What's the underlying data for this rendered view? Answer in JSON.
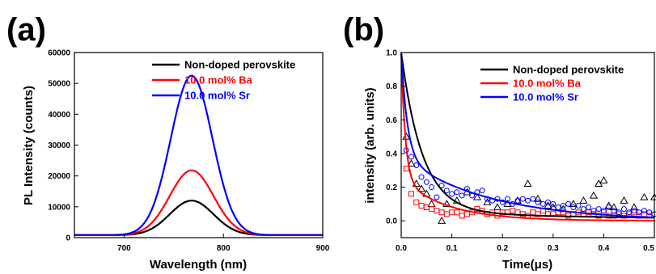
{
  "chart_data": [
    {
      "panel_label": "(a)",
      "type": "line",
      "xlabel": "Wavelength (nm)",
      "ylabel": "PL Intensity (counts)",
      "xlim": [
        650,
        900
      ],
      "ylim": [
        0,
        60000
      ],
      "xticks": [
        "700",
        "800",
        "900"
      ],
      "yticks": [
        "0",
        "10000",
        "20000",
        "30000",
        "40000",
        "50000",
        "60000"
      ],
      "legend_position": "top-right",
      "series": [
        {
          "name": "Non-doped perovskite",
          "color": "#000000",
          "peak_x": 768,
          "peak_y": 12000,
          "baseline": 800,
          "width": 22
        },
        {
          "name": "10.0 mol% Ba",
          "color": "#ff0000",
          "peak_x": 768,
          "peak_y": 21800,
          "baseline": 800,
          "width": 22
        },
        {
          "name": "10.0 mol% Sr",
          "color": "#0000ff",
          "peak_x": 768,
          "peak_y": 52500,
          "baseline": 800,
          "width": 21
        }
      ]
    },
    {
      "panel_label": "(b)",
      "type": "scatter",
      "xlabel": "Time(μs)",
      "ylabel": "intensity (arb. units)",
      "xlim": [
        0,
        0.5
      ],
      "ylim": [
        -0.1,
        1.0
      ],
      "xticks": [
        "0.0",
        "0.1",
        "0.2",
        "0.3",
        "0.4",
        "0.5"
      ],
      "yticks": [
        "0.0",
        "0.2",
        "0.4",
        "0.6",
        "0.8",
        "1.0"
      ],
      "legend_position": "top-right",
      "series": [
        {
          "name": "Non-doped perovskite",
          "color": "#000000",
          "marker": "triangle",
          "fit": {
            "a1": 0.95,
            "t1": 0.042,
            "a2": 0.05,
            "t2": 0.5
          },
          "points": [
            [
              0.01,
              0.5
            ],
            [
              0.02,
              0.34
            ],
            [
              0.03,
              0.22
            ],
            [
              0.04,
              0.19
            ],
            [
              0.05,
              0.16
            ],
            [
              0.06,
              0.1
            ],
            [
              0.08,
              0.0
            ],
            [
              0.09,
              0.1
            ],
            [
              0.11,
              0.12
            ],
            [
              0.13,
              0.17
            ],
            [
              0.15,
              0.14
            ],
            [
              0.17,
              0.11
            ],
            [
              0.19,
              0.08
            ],
            [
              0.21,
              0.1
            ],
            [
              0.23,
              0.12
            ],
            [
              0.25,
              0.22
            ],
            [
              0.27,
              0.13
            ],
            [
              0.29,
              0.09
            ],
            [
              0.3,
              0.08
            ],
            [
              0.32,
              0.07
            ],
            [
              0.34,
              0.1
            ],
            [
              0.36,
              0.12
            ],
            [
              0.38,
              0.15
            ],
            [
              0.39,
              0.22
            ],
            [
              0.4,
              0.24
            ],
            [
              0.41,
              0.09
            ],
            [
              0.42,
              0.08
            ],
            [
              0.44,
              0.12
            ],
            [
              0.46,
              0.08
            ],
            [
              0.48,
              0.14
            ],
            [
              0.5,
              0.14
            ]
          ]
        },
        {
          "name": "10.0 mol% Ba",
          "color": "#ff0000",
          "marker": "square",
          "fit": {
            "a1": 0.75,
            "t1": 0.008,
            "a2": 0.25,
            "t2": 0.09
          },
          "points": [
            [
              0.01,
              0.31
            ],
            [
              0.02,
              0.16
            ],
            [
              0.03,
              0.11
            ],
            [
              0.04,
              0.09
            ],
            [
              0.05,
              0.08
            ],
            [
              0.06,
              0.07
            ],
            [
              0.07,
              0.06
            ],
            [
              0.08,
              0.05
            ],
            [
              0.09,
              0.04
            ],
            [
              0.1,
              0.05
            ],
            [
              0.11,
              0.05
            ],
            [
              0.12,
              0.03
            ],
            [
              0.13,
              0.04
            ],
            [
              0.14,
              0.05
            ],
            [
              0.15,
              0.07
            ],
            [
              0.16,
              0.06
            ],
            [
              0.17,
              0.04
            ],
            [
              0.18,
              0.05
            ],
            [
              0.19,
              0.03
            ],
            [
              0.2,
              0.05
            ],
            [
              0.21,
              0.05
            ],
            [
              0.22,
              0.06
            ],
            [
              0.23,
              0.05
            ],
            [
              0.24,
              0.04
            ],
            [
              0.25,
              0.03
            ],
            [
              0.26,
              0.05
            ],
            [
              0.27,
              0.04
            ],
            [
              0.28,
              0.06
            ],
            [
              0.29,
              0.04
            ],
            [
              0.3,
              0.04
            ],
            [
              0.31,
              0.05
            ],
            [
              0.32,
              0.05
            ],
            [
              0.33,
              0.03
            ],
            [
              0.34,
              0.04
            ],
            [
              0.35,
              0.05
            ],
            [
              0.36,
              0.04
            ],
            [
              0.37,
              0.05
            ],
            [
              0.38,
              0.04
            ],
            [
              0.39,
              0.03
            ],
            [
              0.4,
              0.05
            ],
            [
              0.41,
              0.03
            ],
            [
              0.42,
              0.03
            ],
            [
              0.43,
              0.04
            ],
            [
              0.44,
              0.03
            ],
            [
              0.45,
              0.04
            ],
            [
              0.46,
              0.05
            ],
            [
              0.47,
              0.03
            ],
            [
              0.48,
              0.04
            ],
            [
              0.49,
              0.03
            ]
          ]
        },
        {
          "name": "10.0 mol% Sr",
          "color": "#0000ff",
          "marker": "circle",
          "fit": {
            "a1": 0.62,
            "t1": 0.012,
            "a2": 0.38,
            "t2": 0.17
          },
          "points": [
            [
              0.01,
              0.42
            ],
            [
              0.02,
              0.38
            ],
            [
              0.03,
              0.33
            ],
            [
              0.04,
              0.26
            ],
            [
              0.05,
              0.23
            ],
            [
              0.06,
              0.2
            ],
            [
              0.07,
              0.14
            ],
            [
              0.08,
              0.21
            ],
            [
              0.09,
              0.18
            ],
            [
              0.1,
              0.16
            ],
            [
              0.11,
              0.17
            ],
            [
              0.12,
              0.15
            ],
            [
              0.13,
              0.19
            ],
            [
              0.14,
              0.15
            ],
            [
              0.15,
              0.17
            ],
            [
              0.16,
              0.18
            ],
            [
              0.17,
              0.13
            ],
            [
              0.18,
              0.12
            ],
            [
              0.19,
              0.13
            ],
            [
              0.2,
              0.11
            ],
            [
              0.21,
              0.13
            ],
            [
              0.22,
              0.1
            ],
            [
              0.23,
              0.12
            ],
            [
              0.24,
              0.13
            ],
            [
              0.25,
              0.12
            ],
            [
              0.26,
              0.13
            ],
            [
              0.27,
              0.11
            ],
            [
              0.28,
              0.1
            ],
            [
              0.29,
              0.11
            ],
            [
              0.3,
              0.1
            ],
            [
              0.31,
              0.08
            ],
            [
              0.32,
              0.09
            ],
            [
              0.33,
              0.1
            ],
            [
              0.34,
              0.08
            ],
            [
              0.35,
              0.09
            ],
            [
              0.36,
              0.07
            ],
            [
              0.37,
              0.08
            ],
            [
              0.38,
              0.06
            ],
            [
              0.39,
              0.07
            ],
            [
              0.4,
              0.06
            ],
            [
              0.41,
              0.08
            ],
            [
              0.42,
              0.06
            ],
            [
              0.43,
              0.05
            ],
            [
              0.44,
              0.07
            ],
            [
              0.45,
              0.05
            ],
            [
              0.46,
              0.06
            ],
            [
              0.47,
              0.05
            ],
            [
              0.48,
              0.06
            ],
            [
              0.49,
              0.05
            ],
            [
              0.5,
              0.04
            ]
          ]
        }
      ]
    }
  ]
}
